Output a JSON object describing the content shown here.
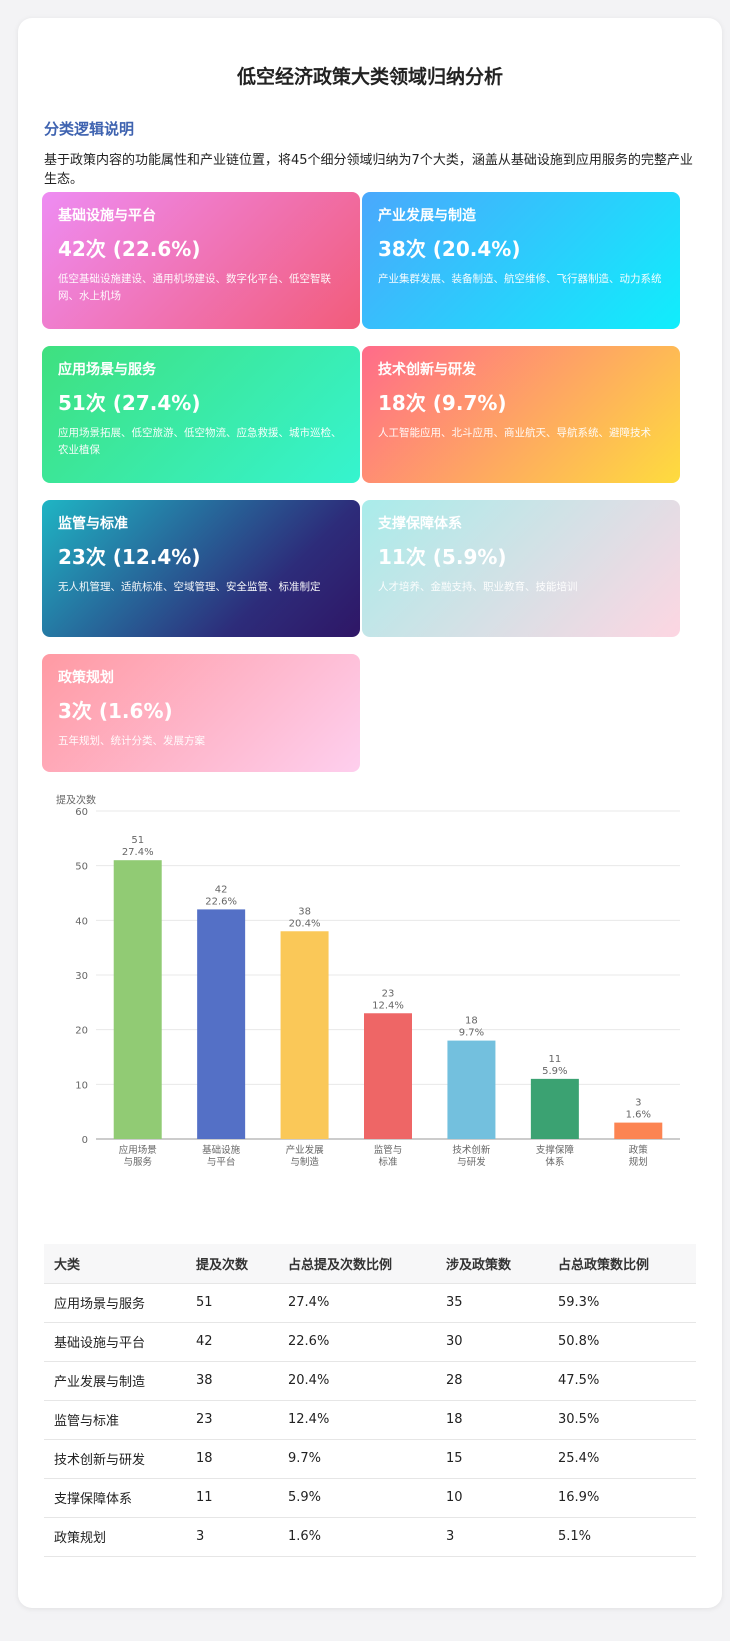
{
  "title": "低空经济政策大类领域归纳分析",
  "section_title": "分类逻辑说明",
  "description": "基于政策内容的功能属性和产业链位置，将45个细分领域归纳为7个大类，涵盖从基础设施到应用服务的完整产业生态。",
  "cards": [
    {
      "name": "基础设施与平台",
      "count": "42次 (22.6%)",
      "items": "低空基础设施建设、通用机场建设、数字化平台、低空智联网、水上机场"
    },
    {
      "name": "产业发展与制造",
      "count": "38次 (20.4%)",
      "items": "产业集群发展、装备制造、航空维修、飞行器制造、动力系统"
    },
    {
      "name": "应用场景与服务",
      "count": "51次 (27.4%)",
      "items": "应用场景拓展、低空旅游、低空物流、应急救援、城市巡检、农业植保"
    },
    {
      "name": "技术创新与研发",
      "count": "18次 (9.7%)",
      "items": "人工智能应用、北斗应用、商业航天、导航系统、避障技术"
    },
    {
      "name": "监管与标准",
      "count": "23次 (12.4%)",
      "items": "无人机管理、适航标准、空域管理、安全监管、标准制定"
    },
    {
      "name": "支撑保障体系",
      "count": "11次 (5.9%)",
      "items": "人才培养、金融支持、职业教育、技能培训"
    },
    {
      "name": "政策规划",
      "count": "3次 (1.6%)",
      "items": "五年规划、统计分类、发展方案"
    }
  ],
  "chart_data": {
    "type": "bar",
    "ylabel": "提及次数",
    "ylim": [
      0,
      60
    ],
    "yticks": [
      0,
      10,
      20,
      30,
      40,
      50,
      60
    ],
    "grid": true,
    "categories": [
      [
        "应用场景",
        "与服务"
      ],
      [
        "基础设施",
        "与平台"
      ],
      [
        "产业发展",
        "与制造"
      ],
      [
        "监管与",
        "标准"
      ],
      [
        "技术创新",
        "与研发"
      ],
      [
        "支撑保障",
        "体系"
      ],
      [
        "政策",
        "规划"
      ]
    ],
    "values": [
      51,
      42,
      38,
      23,
      18,
      11,
      3
    ],
    "percent_labels": [
      "27.4%",
      "22.6%",
      "20.4%",
      "12.4%",
      "9.7%",
      "5.9%",
      "1.6%"
    ],
    "colors": [
      "#91cb74",
      "#5470c6",
      "#fac858",
      "#ee6666",
      "#73c0de",
      "#3ba272",
      "#fc8452"
    ]
  },
  "table": {
    "headers": [
      "大类",
      "提及次数",
      "占总提及次数比例",
      "涉及政策数",
      "占总政策数比例"
    ],
    "rows": [
      [
        "应用场景与服务",
        "51",
        "27.4%",
        "35",
        "59.3%"
      ],
      [
        "基础设施与平台",
        "42",
        "22.6%",
        "30",
        "50.8%"
      ],
      [
        "产业发展与制造",
        "38",
        "20.4%",
        "28",
        "47.5%"
      ],
      [
        "监管与标准",
        "23",
        "12.4%",
        "18",
        "30.5%"
      ],
      [
        "技术创新与研发",
        "18",
        "9.7%",
        "15",
        "25.4%"
      ],
      [
        "支撑保障体系",
        "11",
        "5.9%",
        "10",
        "16.9%"
      ],
      [
        "政策规划",
        "3",
        "1.6%",
        "3",
        "5.1%"
      ]
    ]
  }
}
